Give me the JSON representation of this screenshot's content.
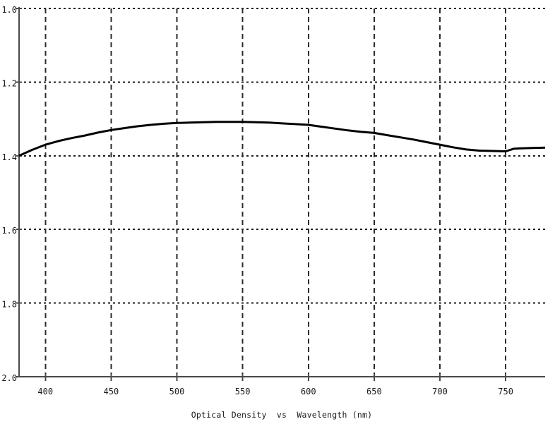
{
  "window": {
    "background_color": "#ffffff"
  },
  "colors": {
    "background": "#ffffff",
    "curve": "#000000",
    "grid": "#1f1f1f",
    "axis": "#4a4a4a",
    "text": "#1a1a1a"
  },
  "chart_data": {
    "type": "line",
    "title": "Optical Density  vs  Wavelength (nm)",
    "xlabel": "Wavelength (nm)",
    "ylabel": "Optical Density",
    "xlim": [
      380,
      780
    ],
    "ylim": [
      1.0,
      2.0
    ],
    "y_axis_orientation": "inverted (1.0 at top, 2.0 at bottom)",
    "grid": "dashed gridlines on both axes",
    "legend_position": "none",
    "x_ticks": [
      400,
      450,
      500,
      550,
      600,
      650,
      700,
      750
    ],
    "x_tick_labels": [
      "400",
      "450",
      "500",
      "550",
      "600",
      "650",
      "700",
      "750"
    ],
    "y_ticks": [
      1.0,
      1.2,
      1.4,
      1.6,
      1.8,
      2.0
    ],
    "y_tick_labels": [
      "1.0",
      "1.2",
      "1.4",
      "1.6",
      "1.8",
      "2.0"
    ],
    "series": [
      {
        "name": "optical-density",
        "color": "#000000",
        "x": [
          380,
          390,
          400,
          410,
          420,
          430,
          440,
          450,
          460,
          470,
          480,
          490,
          500,
          510,
          520,
          530,
          540,
          550,
          560,
          570,
          580,
          590,
          600,
          610,
          620,
          630,
          640,
          650,
          660,
          670,
          680,
          690,
          700,
          710,
          720,
          730,
          740,
          750,
          756,
          760,
          770,
          780
        ],
        "y": [
          1.4,
          1.384,
          1.37,
          1.36,
          1.352,
          1.345,
          1.337,
          1.33,
          1.325,
          1.32,
          1.316,
          1.313,
          1.311,
          1.31,
          1.309,
          1.308,
          1.308,
          1.308,
          1.309,
          1.31,
          1.312,
          1.314,
          1.316,
          1.321,
          1.326,
          1.331,
          1.335,
          1.338,
          1.344,
          1.35,
          1.356,
          1.363,
          1.37,
          1.377,
          1.383,
          1.386,
          1.387,
          1.388,
          1.381,
          1.38,
          1.379,
          1.378
        ]
      }
    ]
  }
}
